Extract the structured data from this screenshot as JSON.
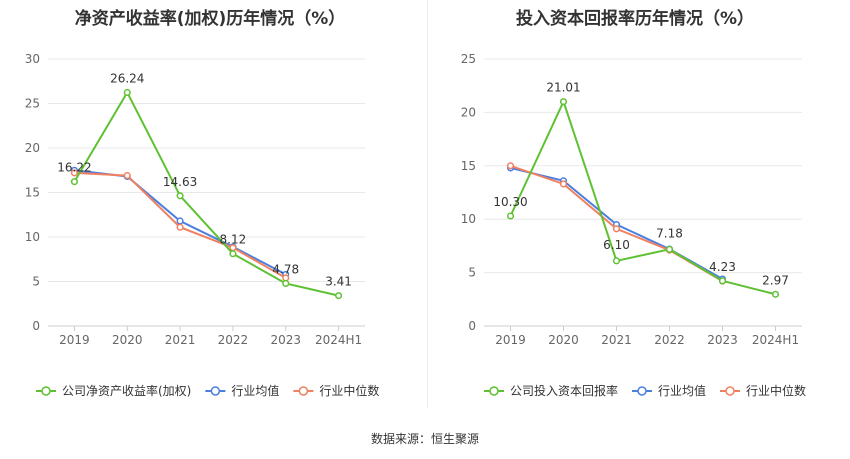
{
  "source": "数据来源：恒生聚源",
  "colors": {
    "company": "#5ec132",
    "avg": "#4a7fe0",
    "median": "#f08060",
    "grid": "#e8e8e8",
    "axis": "#cccccc"
  },
  "chart_data": [
    {
      "type": "line",
      "title": "净资产收益率(加权)历年情况（%）",
      "categories": [
        "2019",
        "2020",
        "2021",
        "2022",
        "2023",
        "2024H1"
      ],
      "ylim": [
        0,
        30
      ],
      "yticks": [
        "0",
        "5",
        "10",
        "15",
        "20",
        "25",
        "30"
      ],
      "grid": true,
      "legend_position": "bottom-left",
      "series": [
        {
          "name": "公司净资产收益率(加权)",
          "key": "company",
          "values": [
            16.22,
            26.24,
            14.63,
            8.12,
            4.78,
            3.41
          ],
          "labels": [
            "16.22",
            "26.24",
            "14.63",
            "8.12",
            "4.78",
            "3.41"
          ]
        },
        {
          "name": "行业均值",
          "key": "avg",
          "values": [
            17.5,
            16.8,
            11.8,
            8.9,
            5.8,
            null
          ]
        },
        {
          "name": "行业中位数",
          "key": "median",
          "values": [
            17.2,
            16.9,
            11.1,
            8.8,
            5.4,
            null
          ]
        }
      ]
    },
    {
      "type": "line",
      "title": "投入资本回报率历年情况（%）",
      "categories": [
        "2019",
        "2020",
        "2021",
        "2022",
        "2023",
        "2024H1"
      ],
      "ylim": [
        0,
        25
      ],
      "yticks": [
        "0",
        "5",
        "10",
        "15",
        "20",
        "25"
      ],
      "grid": true,
      "legend_position": "bottom-left",
      "series": [
        {
          "name": "公司投入资本回报率",
          "key": "company",
          "values": [
            10.3,
            21.01,
            6.1,
            7.18,
            4.23,
            2.97
          ],
          "labels": [
            "10.30",
            "21.01",
            "6.10",
            "7.18",
            "4.23",
            "2.97"
          ]
        },
        {
          "name": "行业均值",
          "key": "avg",
          "values": [
            14.8,
            13.6,
            9.5,
            7.2,
            4.4,
            null
          ]
        },
        {
          "name": "行业中位数",
          "key": "median",
          "values": [
            15.0,
            13.3,
            9.1,
            7.1,
            4.2,
            null
          ]
        }
      ]
    }
  ]
}
